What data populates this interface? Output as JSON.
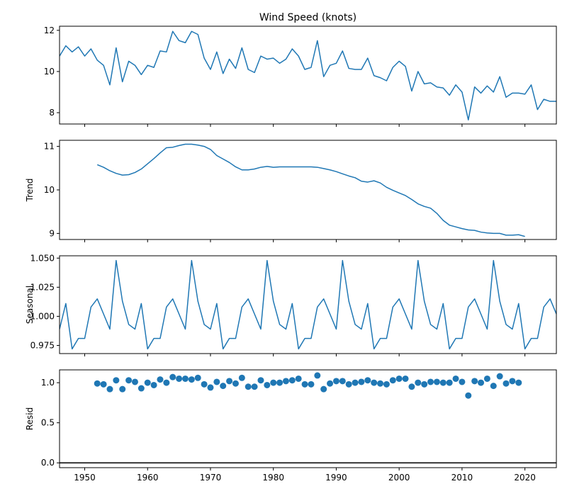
{
  "figure": {
    "title": "Wind Speed (knots)"
  },
  "colors": {
    "series": "#1f77b4",
    "zero_line": "#000000"
  },
  "chart_data": [
    {
      "id": "observed",
      "type": "line",
      "title": "Wind Speed (knots)",
      "ylabel": "",
      "xlim": [
        1946,
        2025
      ],
      "ylim": [
        7.45,
        12.2
      ],
      "yticks": [
        8,
        10,
        12
      ],
      "grid": false,
      "x_start": 1946,
      "values": [
        10.75,
        11.25,
        10.95,
        11.2,
        10.75,
        11.1,
        10.55,
        10.3,
        9.35,
        11.15,
        9.5,
        10.5,
        10.3,
        9.85,
        10.3,
        10.2,
        11.0,
        10.95,
        11.95,
        11.5,
        11.4,
        11.95,
        11.8,
        10.65,
        10.1,
        10.95,
        9.9,
        10.6,
        10.15,
        11.15,
        10.1,
        9.95,
        10.75,
        10.6,
        10.65,
        10.4,
        10.6,
        11.1,
        10.75,
        10.1,
        10.2,
        11.5,
        9.75,
        10.3,
        10.4,
        11.0,
        10.15,
        10.1,
        10.1,
        10.65,
        9.8,
        9.7,
        9.55,
        10.2,
        10.5,
        10.25,
        9.05,
        10.0,
        9.4,
        9.45,
        9.25,
        9.2,
        8.85,
        9.35,
        9.0,
        7.65,
        9.25,
        8.95,
        9.3,
        9.0,
        9.75,
        8.75,
        8.95,
        8.95,
        8.9,
        9.35,
        8.15,
        8.65,
        8.55,
        8.55
      ]
    },
    {
      "id": "trend",
      "type": "line",
      "title": "",
      "ylabel": "Trend",
      "xlim": [
        1946,
        2025
      ],
      "ylim": [
        8.86,
        11.14
      ],
      "yticks": [
        9,
        10,
        11
      ],
      "grid": false,
      "x_start": 1952,
      "values": [
        10.58,
        10.52,
        10.44,
        10.38,
        10.34,
        10.35,
        10.4,
        10.48,
        10.6,
        10.72,
        10.85,
        10.97,
        10.98,
        11.02,
        11.05,
        11.05,
        11.03,
        11.0,
        10.93,
        10.79,
        10.71,
        10.63,
        10.53,
        10.46,
        10.46,
        10.48,
        10.52,
        10.54,
        10.52,
        10.53,
        10.53,
        10.53,
        10.53,
        10.53,
        10.53,
        10.52,
        10.49,
        10.46,
        10.42,
        10.37,
        10.32,
        10.28,
        10.2,
        10.18,
        10.21,
        10.16,
        10.06,
        9.99,
        9.93,
        9.87,
        9.78,
        9.68,
        9.62,
        9.58,
        9.46,
        9.3,
        9.19,
        9.15,
        9.11,
        9.08,
        9.07,
        9.03,
        9.01,
        9.0,
        9.0,
        8.96,
        8.96,
        8.97,
        8.93
      ]
    },
    {
      "id": "seasonal",
      "type": "line",
      "title": "",
      "ylabel": "Seasonal",
      "xlim": [
        1946,
        2025
      ],
      "ylim": [
        0.968,
        1.052
      ],
      "yticks": [
        0.975,
        1.0,
        1.025,
        1.05
      ],
      "ytick_labels": [
        "0.975",
        "1.000",
        "1.025",
        "1.050"
      ],
      "grid": false,
      "x_start": 1946,
      "pattern": [
        0.989,
        1.011,
        0.972,
        0.981,
        0.981,
        1.008,
        1.015,
        1.002,
        0.989,
        1.048,
        1.013,
        0.993
      ],
      "repeat_count": 80
    },
    {
      "id": "resid",
      "type": "scatter",
      "title": "",
      "ylabel": "Resid",
      "xlabel": "",
      "xlim": [
        1946,
        2025
      ],
      "ylim": [
        -0.06,
        1.16
      ],
      "yticks": [
        0.0,
        0.5,
        1.0
      ],
      "xticks": [
        1950,
        1960,
        1970,
        1980,
        1990,
        2000,
        2010,
        2020
      ],
      "zero_line": 0.0,
      "grid": false,
      "x_start": 1952,
      "values": [
        0.99,
        0.98,
        0.92,
        1.03,
        0.92,
        1.03,
        1.01,
        0.93,
        1.0,
        0.97,
        1.04,
        1.0,
        1.07,
        1.05,
        1.05,
        1.04,
        1.06,
        0.98,
        0.94,
        1.01,
        0.96,
        1.02,
        0.99,
        1.06,
        0.95,
        0.95,
        1.03,
        0.97,
        1.0,
        1.0,
        1.02,
        1.03,
        1.05,
        0.98,
        0.98,
        1.09,
        0.92,
        0.99,
        1.02,
        1.02,
        0.98,
        1.0,
        1.01,
        1.03,
        1.0,
        0.99,
        0.98,
        1.03,
        1.05,
        1.05,
        0.95,
        1.0,
        0.98,
        1.01,
        1.01,
        1.0,
        1.0,
        1.05,
        1.01,
        0.84,
        1.02,
        1.0,
        1.05,
        0.96,
        1.08,
        0.99,
        1.02,
        1.0
      ]
    }
  ]
}
